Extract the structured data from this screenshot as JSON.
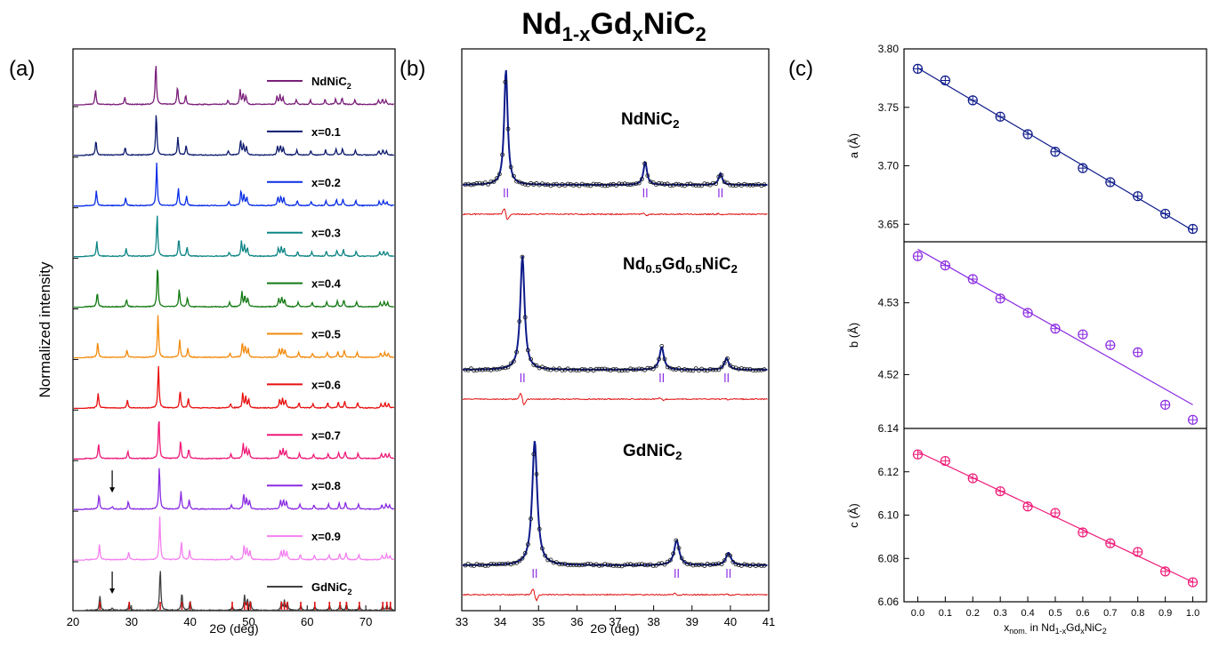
{
  "figure": {
    "title": {
      "main": "Nd",
      "sub1": "1-x",
      "mid": "Gd",
      "sub2": "x",
      "tail": "NiC",
      "sub3": "2"
    },
    "panel_labels": [
      "(a)",
      "(b)",
      "(c)"
    ]
  },
  "chart_data": [
    {
      "panel": "(a)",
      "type": "line",
      "xlabel": "2Θ (deg)",
      "ylabel": "Normalized intensity",
      "xlim": [
        20,
        75
      ],
      "xticks": [
        20,
        30,
        40,
        50,
        60,
        70
      ],
      "series": [
        {
          "name": "NdNiC",
          "name_sub": "2",
          "color": "#7a1f7a"
        },
        {
          "name": "x=0.1",
          "color": "#0d1a6e"
        },
        {
          "name": "x=0.2",
          "color": "#0a2ee6"
        },
        {
          "name": "x=0.3",
          "color": "#0e8585"
        },
        {
          "name": "x=0.4",
          "color": "#137a13"
        },
        {
          "name": "x=0.5",
          "color": "#f28a0c"
        },
        {
          "name": "x=0.6",
          "color": "#e81010"
        },
        {
          "name": "x=0.7",
          "color": "#ee1a78"
        },
        {
          "name": "x=0.8",
          "color": "#8a2be2"
        },
        {
          "name": "x=0.9",
          "color": "#f47ff0"
        },
        {
          "name": "GdNiC",
          "name_sub": "2",
          "color": "#404040"
        }
      ],
      "reflections": [
        24.6,
        29.6,
        34.9,
        38.6,
        40.0,
        47.2,
        49.3,
        49.8,
        50.3,
        55.6,
        56.1,
        56.6,
        58.9,
        61.3,
        63.8,
        65.6,
        66.7,
        68.9,
        72.9,
        73.6,
        74.2
      ],
      "reflection_color": "#e01010",
      "arrows": [
        {
          "series": "x=0.8",
          "x": 26.7
        },
        {
          "series": "GdNiC",
          "x": 26.7
        }
      ]
    },
    {
      "panel": "(b)",
      "type": "line",
      "xlabel": "2Θ (deg)",
      "xlim": [
        33,
        41
      ],
      "xticks": [
        33,
        34,
        35,
        36,
        37,
        38,
        39,
        40,
        41
      ],
      "series": [
        {
          "name": "NdNiC",
          "name_sub": "2",
          "peaks": [
            34.15,
            37.78,
            39.74
          ]
        },
        {
          "name": "Nd",
          "name_sub": "0.5",
          "name_mid": "Gd",
          "name_sub2": "0.5",
          "name_tail": "NiC",
          "name_sub3": "2",
          "peaks": [
            34.58,
            38.21,
            39.9
          ]
        },
        {
          "name": "GdNiC",
          "name_sub": "2",
          "peaks": [
            34.9,
            38.6,
            39.95
          ]
        }
      ],
      "fit_color": "#0d1a8a",
      "residual_color": "#e01010",
      "tick_color": "#8a2be2"
    },
    {
      "panel": "(c)",
      "type": "scatter",
      "xlabel": "x",
      "xlabel_sub": "nom.",
      "xlabel_tail": " in Nd",
      "xlabel_sub2": "1-x",
      "xlabel_mid": "Gd",
      "xlabel_sub3": "x",
      "xlabel_end": "NiC",
      "xlabel_sub4": "2",
      "xlim": [
        -0.05,
        1.05
      ],
      "xticks": [
        "0.0",
        "0.1",
        "0.2",
        "0.3",
        "0.4",
        "0.5",
        "0.6",
        "0.7",
        "0.8",
        "0.9",
        "1.0"
      ],
      "x": [
        0.0,
        0.1,
        0.2,
        0.3,
        0.4,
        0.5,
        0.6,
        0.7,
        0.8,
        0.9,
        1.0
      ],
      "subplots": [
        {
          "ylabel": "a (Å)",
          "color": "#0d1a8a",
          "ylim": [
            3.635,
            3.8
          ],
          "yticks": [
            "3.65",
            "3.70",
            "3.75",
            "3.80"
          ],
          "values": [
            3.783,
            3.773,
            3.756,
            3.742,
            3.727,
            3.712,
            3.698,
            3.686,
            3.674,
            3.659,
            3.646
          ]
        },
        {
          "ylabel": "b (Å)",
          "color": "#8a2be2",
          "ylim": [
            4.5125,
            4.5385
          ],
          "yticks": [
            "4.52",
            "4.53",
            "4.54"
          ],
          "values": [
            4.5365,
            4.5352,
            4.5333,
            4.5306,
            4.5286,
            4.5264,
            4.5256,
            4.5241,
            4.5231,
            4.5158,
            4.5137
          ]
        },
        {
          "ylabel": "c (Å)",
          "color": "#ee1a78",
          "ylim": [
            6.06,
            6.14
          ],
          "yticks": [
            "6.06",
            "6.08",
            "6.10",
            "6.12",
            "6.14"
          ],
          "values": [
            6.128,
            6.125,
            6.117,
            6.111,
            6.104,
            6.101,
            6.092,
            6.087,
            6.083,
            6.074,
            6.069
          ]
        }
      ]
    }
  ]
}
